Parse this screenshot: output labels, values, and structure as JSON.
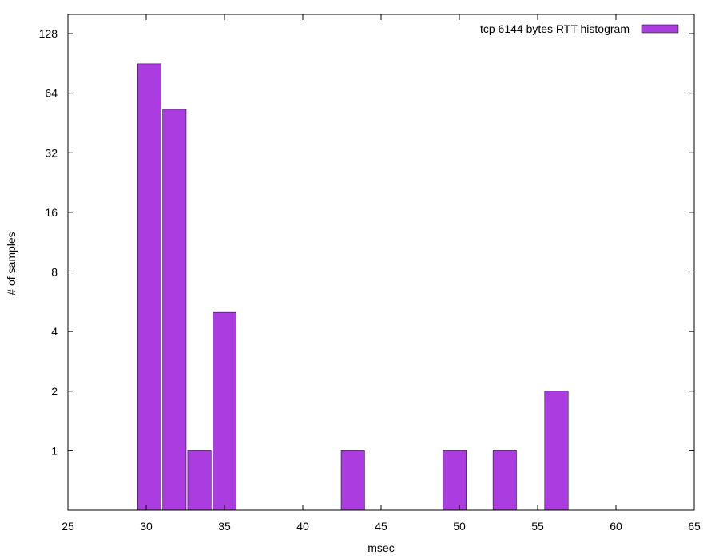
{
  "chart_data": {
    "type": "bar",
    "xlabel": "msec",
    "ylabel": "# of samples",
    "xlim": [
      25,
      65
    ],
    "ylim_log2": [
      0.5,
      160
    ],
    "y_scale": "log2",
    "x_ticks": [
      25,
      30,
      35,
      40,
      45,
      50,
      55,
      60,
      65
    ],
    "y_ticks": [
      1,
      2,
      4,
      8,
      16,
      32,
      64,
      128
    ],
    "grid": false,
    "legend_position": "top-right",
    "bar_color": "#ab3cdf",
    "bar_width": 1.5,
    "series": [
      {
        "name": "tcp 6144 bytes RTT histogram",
        "x": [
          30.2,
          31.8,
          33.4,
          35.0,
          43.2,
          49.7,
          52.9,
          56.2
        ],
        "values": [
          90,
          53,
          1,
          5,
          1,
          1,
          1,
          2
        ]
      }
    ]
  }
}
